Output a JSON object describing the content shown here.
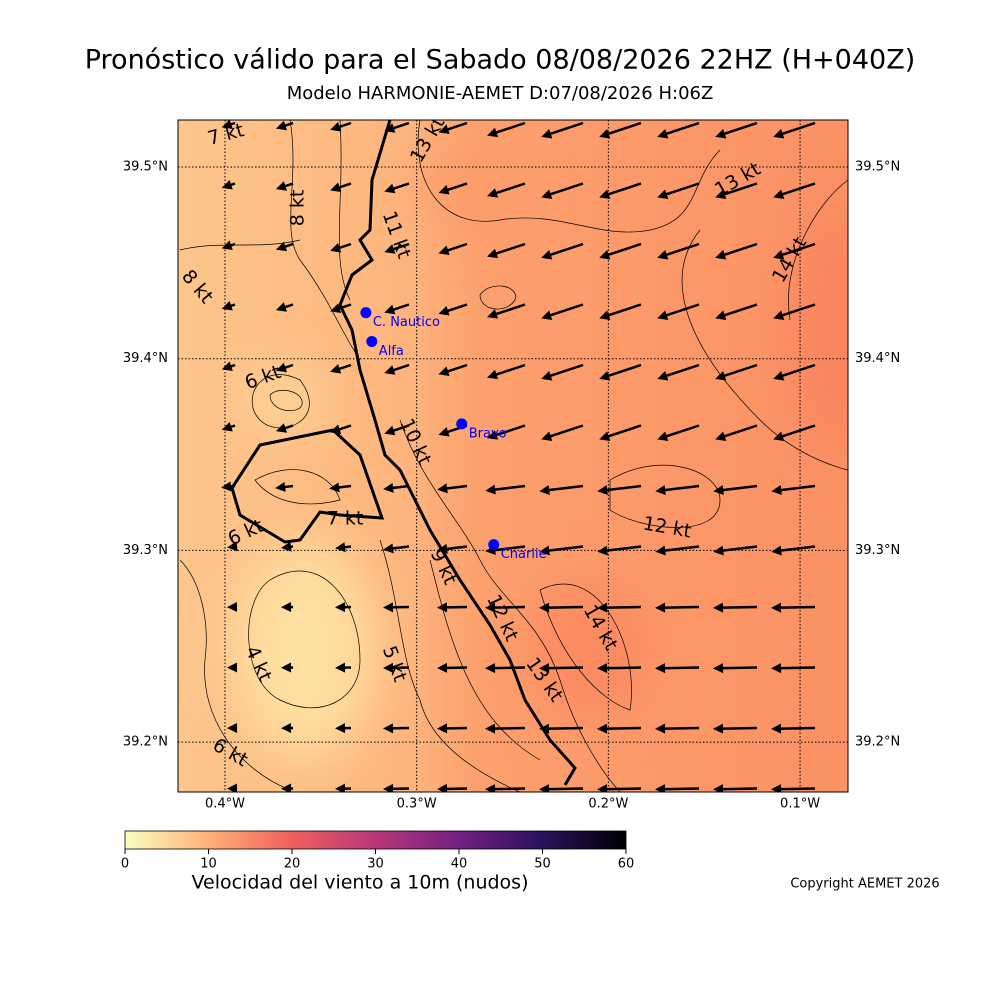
{
  "title": "Pronóstico válido para el Sabado 08/08/2026 22HZ (H+040Z)",
  "subtitle": "Modelo HARMONIE-AEMET D:07/08/2026 H:06Z",
  "map": {
    "lon_range": [
      -0.4245,
      -0.075
    ],
    "lat_range": [
      39.174,
      39.5245
    ],
    "lon_ticks": [
      {
        "value": -0.4,
        "label": "0.4°W"
      },
      {
        "value": -0.3,
        "label": "0.3°W"
      },
      {
        "value": -0.2,
        "label": "0.2°W"
      },
      {
        "value": -0.1,
        "label": "0.1°W"
      }
    ],
    "lat_ticks": [
      {
        "value": 39.5,
        "label": "39.5°N"
      },
      {
        "value": 39.4,
        "label": "39.4°N"
      },
      {
        "value": 39.3,
        "label": "39.3°N"
      },
      {
        "value": 39.2,
        "label": "39.2°N"
      }
    ],
    "stations": [
      {
        "name": "C. Nautico",
        "lon": -0.3265,
        "lat": 39.424
      },
      {
        "name": "Alfa",
        "lon": -0.3234,
        "lat": 39.409
      },
      {
        "name": "Bravo",
        "lon": -0.2765,
        "lat": 39.366
      },
      {
        "name": "Charlie",
        "lon": -0.2598,
        "lat": 39.303
      }
    ],
    "contour_labels": [
      "7 kt",
      "13 kt",
      "13 kt",
      "8 kt",
      "11 kt",
      "14 kt",
      "8 kt",
      "6 kt",
      "10 kt",
      "12 kt",
      "6 kt",
      "7 kt",
      "9 kt",
      "12 kt",
      "14 kt",
      "4 kt",
      "5 kt",
      "13 kt",
      "6 kt"
    ]
  },
  "colorbar": {
    "label": "Velocidad del viento a 10m (nudos)",
    "range": [
      0,
      60
    ],
    "ticks": [
      0,
      10,
      20,
      30,
      40,
      50,
      60
    ]
  },
  "copyright": "Copyright AEMET 2026"
}
